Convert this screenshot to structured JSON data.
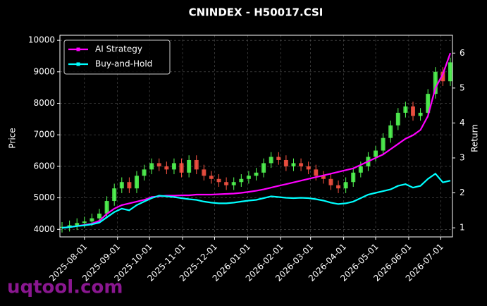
{
  "chart_data": {
    "type": "candlestick",
    "title": "CNINDEX - H50017.CSI",
    "ylabel": "Price",
    "y2label": "Return",
    "x": [
      "2025-07-11",
      "2025-07-18",
      "2025-07-25",
      "2025-08-01",
      "2025-08-08",
      "2025-08-15",
      "2025-08-22",
      "2025-08-29",
      "2025-09-05",
      "2025-09-12",
      "2025-09-19",
      "2025-09-26",
      "2025-10-03",
      "2025-10-10",
      "2025-10-17",
      "2025-10-24",
      "2025-10-31",
      "2025-11-07",
      "2025-11-14",
      "2025-11-21",
      "2025-11-28",
      "2025-12-05",
      "2025-12-12",
      "2025-12-19",
      "2025-12-26",
      "2026-01-02",
      "2026-01-09",
      "2026-01-16",
      "2026-01-23",
      "2026-01-30",
      "2026-02-06",
      "2026-02-13",
      "2026-02-20",
      "2026-02-27",
      "2026-03-06",
      "2026-03-13",
      "2026-03-20",
      "2026-03-27",
      "2026-04-03",
      "2026-04-10",
      "2026-04-17",
      "2026-04-24",
      "2026-05-01",
      "2026-05-08",
      "2026-05-15",
      "2026-05-22",
      "2026-05-29",
      "2026-06-05",
      "2026-06-12",
      "2026-06-19",
      "2026-06-26",
      "2026-07-03",
      "2026-07-10"
    ],
    "open": [
      4050,
      4080,
      4130,
      4200,
      4250,
      4350,
      4500,
      4900,
      5300,
      5500,
      5300,
      5700,
      5900,
      6100,
      6000,
      5900,
      6100,
      5800,
      6200,
      5900,
      5700,
      5600,
      5500,
      5400,
      5500,
      5600,
      5700,
      5800,
      6100,
      6300,
      6200,
      6000,
      6100,
      6000,
      5900,
      5700,
      5600,
      5400,
      5300,
      5500,
      5800,
      6000,
      6300,
      6500,
      6900,
      7300,
      7700,
      7900,
      7600,
      7700,
      8300,
      9000,
      8700
    ],
    "high": [
      4230,
      4280,
      4350,
      4400,
      4500,
      4650,
      5050,
      5450,
      5650,
      5650,
      5850,
      6050,
      6250,
      6250,
      6150,
      6250,
      6250,
      6350,
      6350,
      6050,
      5850,
      5750,
      5650,
      5650,
      5750,
      5850,
      5950,
      6250,
      6450,
      6450,
      6350,
      6250,
      6250,
      6150,
      6050,
      5850,
      5750,
      5550,
      5650,
      5950,
      6150,
      6450,
      6650,
      7050,
      7450,
      7850,
      8050,
      8050,
      7850,
      8450,
      9150,
      9150,
      9450
    ],
    "low": [
      3900,
      3930,
      3980,
      4050,
      4100,
      4200,
      4350,
      4750,
      5150,
      5150,
      5150,
      5550,
      5750,
      5850,
      5750,
      5750,
      5650,
      5650,
      5750,
      5550,
      5450,
      5350,
      5250,
      5250,
      5350,
      5450,
      5550,
      5650,
      5950,
      6050,
      5850,
      5850,
      5850,
      5750,
      5550,
      5450,
      5250,
      5150,
      5150,
      5350,
      5650,
      5850,
      6150,
      6350,
      6750,
      7150,
      7550,
      7450,
      7450,
      7550,
      8150,
      8550,
      8550
    ],
    "close": [
      4080,
      4130,
      4200,
      4250,
      4350,
      4500,
      4900,
      5300,
      5500,
      5300,
      5700,
      5900,
      6100,
      6000,
      5900,
      6100,
      5800,
      6200,
      5900,
      5700,
      5600,
      5500,
      5400,
      5500,
      5600,
      5700,
      5800,
      6100,
      6300,
      6200,
      6000,
      6100,
      6000,
      5900,
      5700,
      5600,
      5400,
      5300,
      5500,
      5800,
      6000,
      6300,
      6500,
      6900,
      7300,
      7700,
      7900,
      7600,
      7700,
      8300,
      9000,
      8700,
      9300
    ],
    "up_color": "#55ff55",
    "down_color": "#ff5544",
    "series": [
      {
        "name": "AI Strategy",
        "color": "#ff00ff",
        "axis": "y2",
        "values": [
          1.0,
          1.02,
          1.05,
          1.08,
          1.12,
          1.2,
          1.4,
          1.55,
          1.65,
          1.7,
          1.75,
          1.8,
          1.88,
          1.9,
          1.92,
          1.92,
          1.93,
          1.93,
          1.95,
          1.95,
          1.95,
          1.96,
          1.97,
          1.98,
          2.0,
          2.03,
          2.06,
          2.1,
          2.15,
          2.2,
          2.25,
          2.3,
          2.35,
          2.4,
          2.45,
          2.5,
          2.55,
          2.6,
          2.65,
          2.7,
          2.8,
          2.9,
          3.0,
          3.1,
          3.25,
          3.4,
          3.55,
          3.65,
          3.8,
          4.2,
          5.0,
          5.4,
          6.0
        ]
      },
      {
        "name": "Buy-and-Hold",
        "color": "#00ffff",
        "axis": "y2",
        "values": [
          1.0,
          1.02,
          1.05,
          1.07,
          1.1,
          1.15,
          1.3,
          1.45,
          1.55,
          1.5,
          1.65,
          1.75,
          1.85,
          1.92,
          1.9,
          1.88,
          1.85,
          1.82,
          1.8,
          1.75,
          1.72,
          1.7,
          1.7,
          1.72,
          1.75,
          1.78,
          1.8,
          1.85,
          1.9,
          1.88,
          1.86,
          1.85,
          1.86,
          1.85,
          1.82,
          1.78,
          1.72,
          1.68,
          1.7,
          1.75,
          1.85,
          1.95,
          2.0,
          2.05,
          2.1,
          2.2,
          2.25,
          2.15,
          2.2,
          2.4,
          2.55,
          2.3,
          2.35
        ]
      }
    ],
    "xlim": [
      "2025-07-09",
      "2026-07-12"
    ],
    "xticks": [
      "2025-08-01",
      "2025-09-01",
      "2025-10-01",
      "2025-11-01",
      "2025-12-01",
      "2026-01-01",
      "2026-02-01",
      "2026-03-01",
      "2026-04-01",
      "2026-05-01",
      "2026-06-01",
      "2026-07-01"
    ],
    "ylim": [
      3760,
      10160
    ],
    "yticks": [
      4000,
      5000,
      6000,
      7000,
      8000,
      9000,
      10000
    ],
    "y2lim": [
      0.74,
      6.51
    ],
    "y2ticks": [
      1,
      2,
      3,
      4,
      5,
      6
    ],
    "grid": true,
    "legend": "upper left"
  },
  "watermark": "uqtool.com"
}
